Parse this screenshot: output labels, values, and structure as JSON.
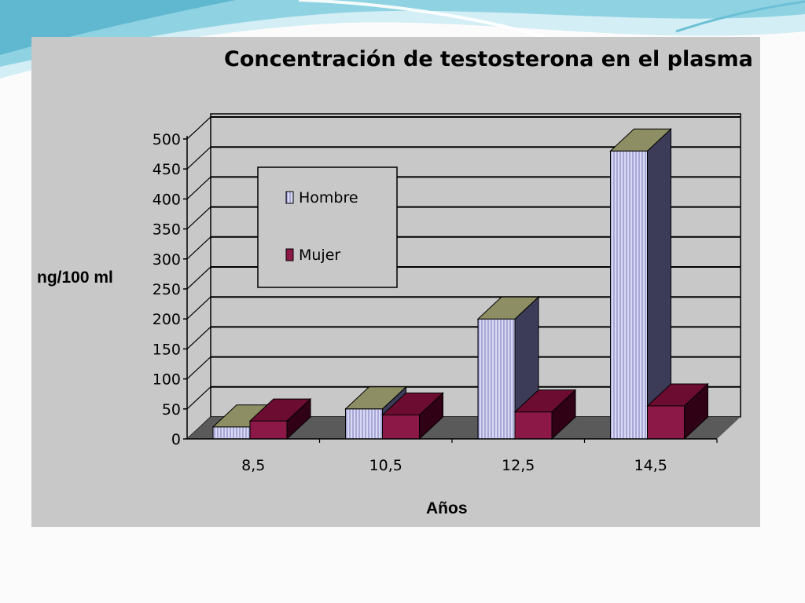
{
  "slide": {
    "colors": {
      "wave_dark": "#5fb8cf",
      "wave_mid": "#8fd2e2",
      "wave_light": "#d3eef5",
      "background": "#fbfbfb"
    }
  },
  "chart_data": {
    "type": "bar",
    "title": "Concentración de testosterona en el plasma",
    "xlabel": "Años",
    "ylabel": "ng/100 ml",
    "categories": [
      "8,5",
      "10,5",
      "12,5",
      "14,5"
    ],
    "series": [
      {
        "name": "Hombre",
        "values": [
          20,
          50,
          200,
          480
        ],
        "color": "#d8d8f4",
        "stripe": "#7878b8",
        "top": "#8e8e64",
        "side": "#3c3c58"
      },
      {
        "name": "Mujer",
        "values": [
          30,
          40,
          45,
          55
        ],
        "color": "#8c1848",
        "top": "#6c0c30",
        "side": "#300014"
      }
    ],
    "ylim": [
      0,
      500
    ],
    "yticks": [
      0,
      50,
      100,
      150,
      200,
      250,
      300,
      350,
      400,
      450,
      500
    ],
    "grid": true,
    "legend": "upper-left inside plot",
    "colors": {
      "panel": "#c8c8c8",
      "floor": "#5a5a5a",
      "gridline": "#000000"
    }
  }
}
